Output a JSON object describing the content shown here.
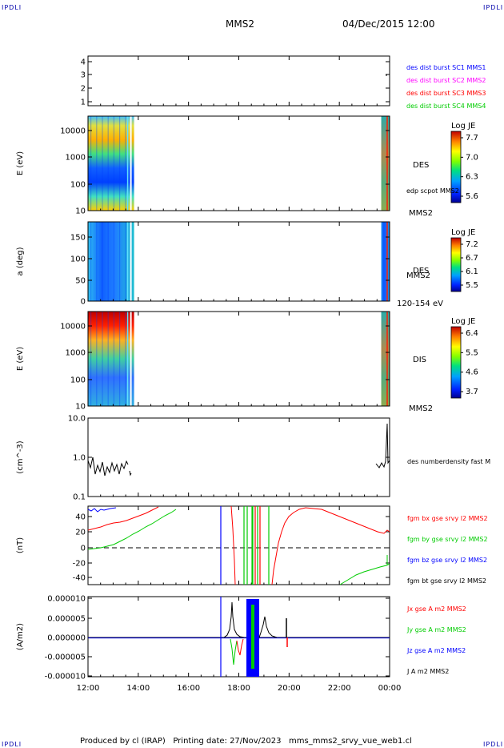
{
  "corner_label": "IPDLI",
  "header": {
    "spacecraft": "MMS2",
    "datetime": "04/Dec/2015 12:00"
  },
  "footer": "Produced by cl (IRAP)   Printing date: 27/Nov/2023   mms_mms2_srvy_vue_web1.cl",
  "time_axis": [
    "12:00",
    "14:00",
    "16:00",
    "18:00",
    "20:00",
    "22:00",
    "00:00"
  ],
  "colors": {
    "red": "#ff0000",
    "green": "#00cc00",
    "blue": "#0000ff",
    "magenta": "#ff00ff",
    "black": "#000000"
  },
  "chart_data": [
    {
      "type": "scatter",
      "panel": "burst",
      "yticks": [
        "1",
        "2",
        "3",
        "4"
      ],
      "ylim": [
        0.5,
        4.5
      ],
      "legend": [
        {
          "label": "des dist burst SC1 MMS1",
          "color": "#0000ff"
        },
        {
          "label": "des dist burst SC2 MMS2",
          "color": "#ff00ff"
        },
        {
          "label": "des dist burst SC3 MMS3",
          "color": "#ff0000"
        },
        {
          "label": "des dist burst SC4 MMS4",
          "color": "#00cc00"
        }
      ]
    },
    {
      "type": "heatmap",
      "panel": "des_energy",
      "ylabel": "E (eV)",
      "yticks": [
        "10",
        "100",
        "1000",
        "10000"
      ],
      "yscale": "log",
      "side_label": "DES",
      "side_label2": "edp scpot MMS2",
      "bottom_label": "MMS2",
      "colorbar": {
        "title": "Log JE",
        "ticks": [
          "7.7",
          "7.0",
          "6.3",
          "5.6"
        ]
      },
      "data_intervals": [
        [
          "12:00",
          "13:50"
        ],
        [
          "23:40",
          "00:00"
        ]
      ]
    },
    {
      "type": "heatmap",
      "panel": "des_pitch",
      "ylabel": "a (deg)",
      "yticks": [
        "0",
        "50",
        "100",
        "150"
      ],
      "side_label": "DES",
      "side_label2": "MMS2",
      "bottom_label": "120-154 eV",
      "colorbar": {
        "title": "Log JE",
        "ticks": [
          "7.2",
          "6.7",
          "6.1",
          "5.5"
        ]
      },
      "data_intervals": [
        [
          "12:00",
          "13:50"
        ],
        [
          "23:40",
          "00:00"
        ]
      ]
    },
    {
      "type": "heatmap",
      "panel": "dis_energy",
      "ylabel": "E (eV)",
      "yticks": [
        "10",
        "100",
        "1000",
        "10000"
      ],
      "yscale": "log",
      "side_label": "DIS",
      "bottom_label": "MMS2",
      "colorbar": {
        "title": "Log JE",
        "ticks": [
          "6.4",
          "5.5",
          "4.6",
          "3.7"
        ]
      },
      "data_intervals": [
        [
          "12:00",
          "13:50"
        ],
        [
          "23:40",
          "00:00"
        ]
      ]
    },
    {
      "type": "line",
      "panel": "density",
      "ylabel": "(cm^-3)",
      "yticks": [
        "0.1",
        "1.0",
        "10.0"
      ],
      "yscale": "log",
      "ylim": [
        0.1,
        10
      ],
      "legend": [
        {
          "label": "des numberdensity fast M",
          "color": "#000000"
        }
      ]
    },
    {
      "type": "line",
      "panel": "fgm",
      "ylabel": "(nT)",
      "yticks": [
        "-40",
        "-20",
        "0",
        "20",
        "40"
      ],
      "ylim": [
        -48,
        50
      ],
      "legend": [
        {
          "label": "fgm bx gse srvy l2 MMS2",
          "color": "#ff0000"
        },
        {
          "label": "fgm by gse srvy l2 MMS2",
          "color": "#00cc00"
        },
        {
          "label": "fgm bz gse srvy l2 MMS2",
          "color": "#0000ff"
        },
        {
          "label": "fgm bt gse srvy l2 MMS2",
          "color": "#000000"
        }
      ]
    },
    {
      "type": "line",
      "panel": "current",
      "ylabel": "(A/m2)",
      "yticks": [
        "-0.000010",
        "-0.000005",
        "0.000000",
        "0.000005",
        "0.000010"
      ],
      "ylim": [
        -1e-05,
        1e-05
      ],
      "legend": [
        {
          "label": "Jx gse A m2 MMS2",
          "color": "#ff0000"
        },
        {
          "label": "Jy gse A m2 MMS2",
          "color": "#00cc00"
        },
        {
          "label": "Jz gse A m2 MMS2",
          "color": "#0000ff"
        },
        {
          "label": "J A m2 MMS2",
          "color": "#000000"
        }
      ]
    }
  ]
}
